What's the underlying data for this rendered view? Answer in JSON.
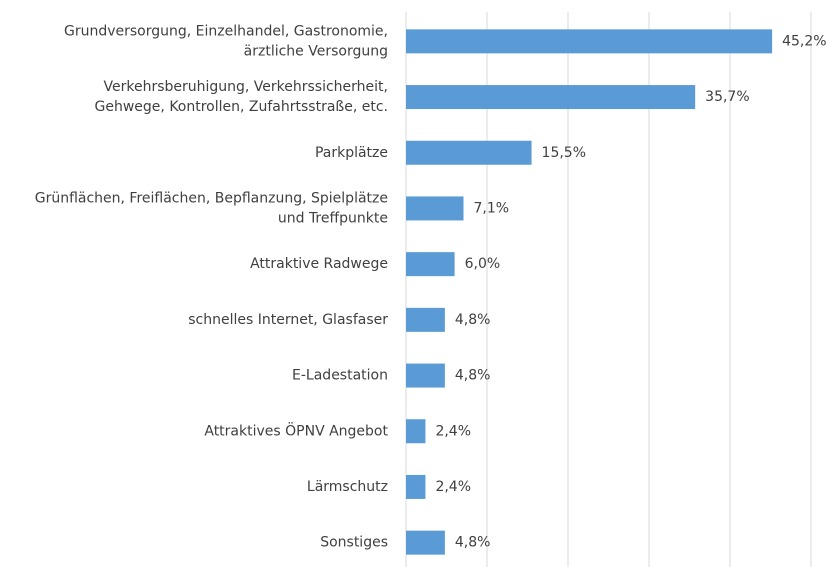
{
  "chart_data": {
    "type": "bar",
    "orientation": "horizontal",
    "categories": [
      "Grundversorgung, Einzelhandel, Gastronomie,\närztliche Versorgung",
      "Verkehrsberuhigung, Verkehrssicherheit,\nGehwege, Kontrollen, Zufahrtsstraße, etc.",
      "Parkplätze",
      "Grünflächen, Freiflächen, Bepflanzung, Spielplätze\nund Treffpunkte",
      "Attraktive Radwege",
      "schnelles Internet, Glasfaser",
      "E-Ladestation",
      "Attraktives ÖPNV Angebot",
      "Lärmschutz",
      "Sonstiges"
    ],
    "values": [
      45.2,
      35.7,
      15.5,
      7.1,
      6.0,
      4.8,
      4.8,
      2.4,
      2.4,
      4.8
    ],
    "value_labels": [
      "45,2%",
      "35,7%",
      "15,5%",
      "7,1%",
      "6,0%",
      "4,8%",
      "4,8%",
      "2,4%",
      "2,4%",
      "4,8%"
    ],
    "color": "#5b9bd5",
    "xlim": [
      0,
      50
    ],
    "xticks": [
      0,
      10,
      20,
      30,
      40,
      50
    ],
    "grid": true
  }
}
